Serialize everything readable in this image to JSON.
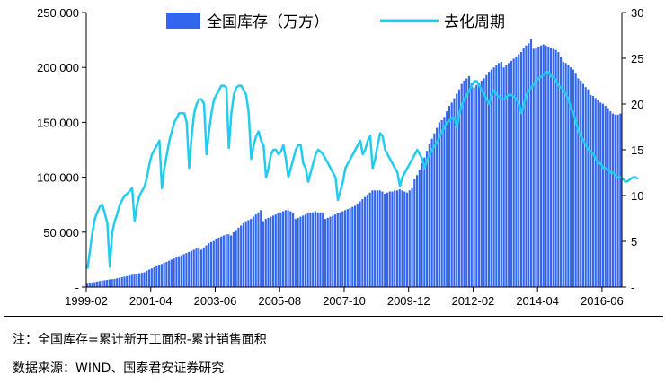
{
  "chart_data": {
    "type": "bar+line",
    "legend": {
      "bar_label": "全国库存（万方）",
      "line_label": "去化周期",
      "placement": "top"
    },
    "colors": {
      "bar": "#3366ee",
      "line": "#22ccee"
    },
    "x_ticks": [
      "1999-02",
      "2001-04",
      "2003-06",
      "2005-08",
      "2007-10",
      "2009-12",
      "2012-02",
      "2014-04",
      "2016-06"
    ],
    "y_left": {
      "ticks": [
        "-",
        "50,000",
        "100,000",
        "150,000",
        "200,000",
        "250,000"
      ],
      "lim": [
        0,
        250000
      ]
    },
    "y_right": {
      "ticks": [
        "-",
        "5",
        "10",
        "15",
        "20",
        "25",
        "30"
      ],
      "lim": [
        0,
        30
      ]
    },
    "series": [
      {
        "name": "全国库存（万方）",
        "kind": "bar",
        "values": [
          3000,
          3500,
          4000,
          4500,
          5000,
          5500,
          6000,
          6200,
          6500,
          7000,
          7200,
          7400,
          8000,
          8500,
          9000,
          9500,
          10000,
          10500,
          11000,
          11500,
          12000,
          12500,
          13000,
          13500,
          15000,
          16000,
          17000,
          18000,
          19000,
          20000,
          21000,
          22000,
          23000,
          24000,
          25000,
          26000,
          27000,
          28000,
          29000,
          30000,
          31000,
          32000,
          33000,
          34000,
          35000,
          35000,
          34000,
          36000,
          38000,
          40000,
          41000,
          42000,
          44000,
          45000,
          46000,
          47000,
          48000,
          48000,
          47000,
          50000,
          52000,
          54000,
          56000,
          58000,
          60000,
          61000,
          62000,
          64000,
          66000,
          68000,
          70000,
          60000,
          62000,
          63000,
          64000,
          65000,
          66000,
          67000,
          68000,
          69000,
          70000,
          70000,
          69000,
          67000,
          62000,
          63000,
          64000,
          65000,
          66000,
          67000,
          68000,
          68000,
          69000,
          68000,
          68000,
          67000,
          62000,
          63000,
          64000,
          65000,
          66000,
          67000,
          68000,
          69000,
          70000,
          71000,
          72000,
          73000,
          74000,
          76000,
          78000,
          80000,
          82000,
          84000,
          86000,
          88000,
          88000,
          88000,
          88000,
          87000,
          85000,
          86000,
          87000,
          87000,
          88000,
          88000,
          89000,
          88000,
          87000,
          86000,
          88000,
          90000,
          98000,
          102000,
          107000,
          113000,
          118000,
          124000,
          130000,
          135000,
          140000,
          145000,
          150000,
          152000,
          155000,
          160000,
          165000,
          168000,
          172000,
          176000,
          180000,
          185000,
          188000,
          190000,
          192000,
          186000,
          182000,
          184000,
          186000,
          188000,
          190000,
          193000,
          196000,
          198000,
          200000,
          202000,
          204000,
          205000,
          200000,
          202000,
          204000,
          206000,
          208000,
          210000,
          212000,
          214000,
          218000,
          220000,
          222000,
          226000,
          217000,
          218000,
          219000,
          220000,
          221000,
          220000,
          219000,
          218000,
          217000,
          216000,
          214000,
          210000,
          205000,
          204000,
          202000,
          200000,
          198000,
          195000,
          190000,
          188000,
          185000,
          182000,
          180000,
          175000,
          174000,
          172000,
          170000,
          168000,
          167000,
          165000,
          163000,
          160000,
          158000,
          157000,
          157000,
          158000
        ]
      },
      {
        "name": "去化周期",
        "kind": "line",
        "values": [
          2,
          4,
          6,
          7.5,
          8.2,
          8.8,
          9,
          8,
          7,
          2.2,
          6,
          7.2,
          8,
          9,
          9.5,
          10,
          10.2,
          10.5,
          10.8,
          7.2,
          9,
          10,
          10.5,
          11,
          12,
          13.5,
          14.5,
          15,
          15.5,
          16,
          10.8,
          13,
          14.5,
          16,
          17,
          18,
          18.5,
          19,
          19,
          19,
          18,
          13,
          16.5,
          19,
          20,
          20.5,
          20.5,
          20,
          14.5,
          17,
          19,
          20.5,
          21,
          21.5,
          22,
          22,
          21.8,
          15.2,
          19,
          21,
          21.8,
          22,
          22,
          21.5,
          21,
          19,
          14,
          15.5,
          16.5,
          17,
          16,
          15.5,
          12,
          13,
          14.5,
          15,
          15,
          14.5,
          14.8,
          15.5,
          14,
          12,
          13,
          14,
          15,
          15.5,
          15.5,
          13.5,
          13,
          11.5,
          12.5,
          13.5,
          14.5,
          15,
          14.8,
          14.5,
          14,
          13.5,
          13,
          12.5,
          12,
          9.5,
          10.5,
          11.5,
          13,
          13.5,
          14,
          14.5,
          15,
          15.5,
          16,
          14.5,
          15,
          16,
          16.5,
          13,
          14,
          15.5,
          16.8,
          16.5,
          15,
          14.5,
          14,
          13.5,
          13,
          12.5,
          11,
          12,
          12.5,
          13,
          13.5,
          14,
          14.5,
          15,
          14.5,
          14,
          13,
          14,
          14.5,
          15,
          15.5,
          15.8,
          16.5,
          17,
          17.5,
          18,
          18.2,
          18.5,
          18.5,
          17.5,
          19,
          20,
          20.5,
          21,
          21.5,
          22,
          22.5,
          22.5,
          22,
          21.5,
          21,
          20.5,
          20,
          21,
          21.5,
          21,
          20.8,
          20.5,
          20.5,
          20.8,
          21,
          21,
          20.8,
          20.5,
          20,
          19,
          20,
          21,
          21.5,
          21.8,
          22.2,
          22.5,
          22.8,
          23,
          23.2,
          23.5,
          23.5,
          23,
          23,
          22.5,
          22,
          21.8,
          21.5,
          21,
          20.5,
          19.5,
          19,
          18,
          17,
          16.5,
          16,
          15.5,
          15,
          14.8,
          14.5,
          14,
          13.5,
          13.5,
          13,
          13,
          12.8,
          12.5,
          12.5,
          12.2,
          12,
          12,
          11.8,
          11.5,
          11.6,
          11.8,
          12,
          12,
          11.8
        ]
      }
    ]
  },
  "footnote": "注：全国库存=累计新开工面积-累计销售面积",
  "source": "数据来源：WIND、国泰君安证券研究"
}
